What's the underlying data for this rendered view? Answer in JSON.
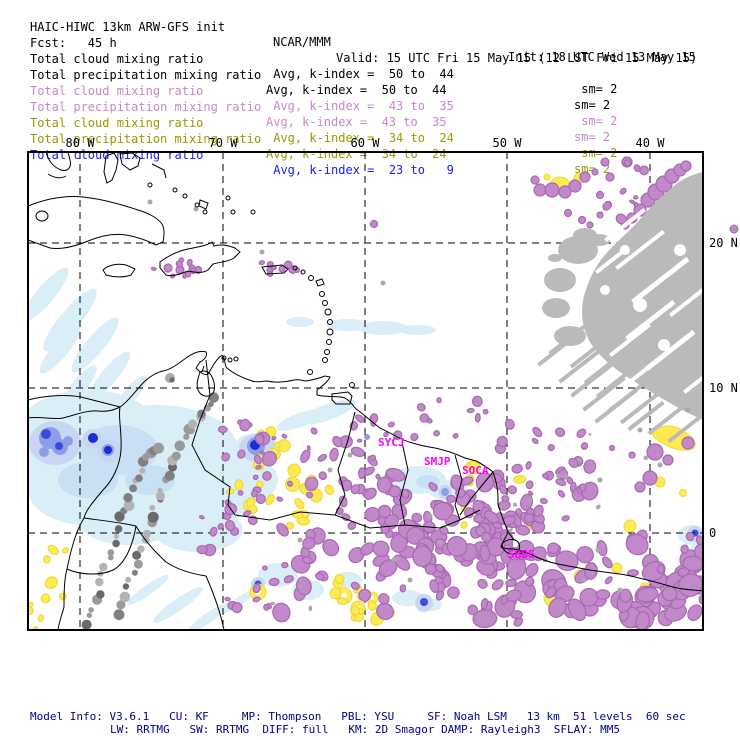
{
  "title_block": {
    "model_title": "HAIC-HIWC 13km ARW-GFS init",
    "center_name": "NCAR/MMM",
    "init_label": "Init: 18 UTC Wed 13 May 15",
    "fcst_label": "Fcst:   45 h",
    "valid_label": "Valid: 15 UTC Fri 15 May 15 (12 LST Fri 15 May 15)"
  },
  "legend_rows": [
    {
      "label": "Total cloud mixing ratio",
      "kindex": " Avg, k-index =  50 to  44",
      "sm": " sm= 2",
      "color_name": "black"
    },
    {
      "label": "Total precipitation mixing ratio",
      "kindex": "Avg, k-index =  50 to  44",
      "sm": "sm= 2",
      "color_name": "black"
    },
    {
      "label": "Total cloud mixing ratio",
      "kindex": " Avg, k-index =  43 to  35",
      "sm": " sm= 2",
      "color_name": "violet"
    },
    {
      "label": "Total precipitation mixing ratio",
      "kindex": "Avg, k-index =  43 to  35",
      "sm": "sm= 2",
      "color_name": "violet"
    },
    {
      "label": "Total cloud mixing ratio",
      "kindex": " Avg, k-index =  34 to  24",
      "sm": " sm= 2",
      "color_name": "olive"
    },
    {
      "label": "Total precipitation mixing ratio",
      "kindex": "Avg, k-index =  34 to  24",
      "sm": "sm= 2",
      "color_name": "olive"
    },
    {
      "label": "Total cloud mixing ratio",
      "kindex": " Avg, k-index =  23 to   9",
      "sm": "",
      "color_name": "blue"
    }
  ],
  "map": {
    "lon_labels": [
      "80 W",
      "70 W",
      "60 W",
      "50 W",
      "40 W"
    ],
    "lat_labels": [
      "20 N",
      "10 N",
      "0"
    ],
    "station_labels": [
      "SYCJ",
      "SMJP",
      "SOCA",
      "SBBE"
    ]
  },
  "footer": {
    "line1": "Model Info: V3.6.1   CU: KF     MP: Thompson   PBL: YSU     SF: Noah LSM   13 km  51 levels  60 sec",
    "line2": "LW: RRTMG   SW: RRTMG  DIFF: full   KM: 2D Smagor DAMP: Rayleigh3  SFLAY: MM5"
  },
  "palette": {
    "header_violet": "#c987c9",
    "header_olive": "#9a9a00",
    "header_blue": "#1a1aff",
    "station_magenta": "#ff00ff",
    "footer_navy": "#00008b",
    "cloud_pale_cyan": "#daeef8",
    "cloud_core_blue": "#3a4be0",
    "precip_yellow": "#ffeb50",
    "precip_purple": "#c289ca",
    "terrain_dust_gray": "#bababa"
  }
}
